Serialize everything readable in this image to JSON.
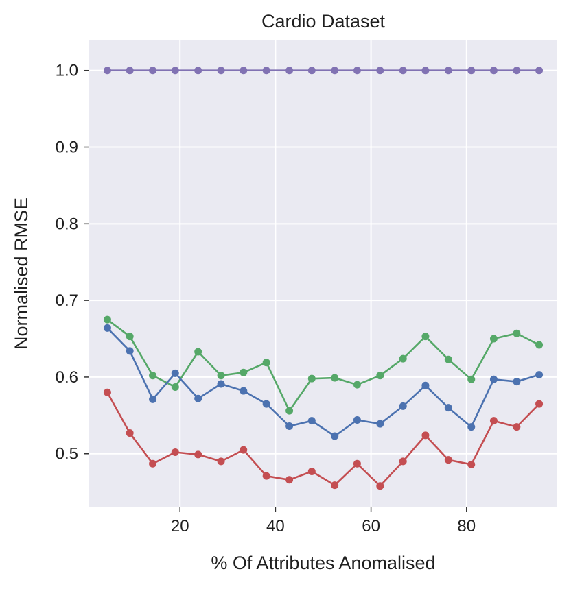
{
  "chart_data": {
    "type": "line",
    "title": "Cardio Dataset",
    "xlabel": "% Of Attributes Anomalised",
    "ylabel": "Normalised RMSE",
    "xlim": [
      1,
      99
    ],
    "ylim": [
      0.43,
      1.04
    ],
    "xticks": [
      20,
      40,
      60,
      80
    ],
    "yticks": [
      0.5,
      0.6,
      0.7,
      0.8,
      0.9,
      1.0
    ],
    "xtick_labels": [
      "20",
      "40",
      "60",
      "80"
    ],
    "ytick_labels": [
      "0.5",
      "0.6",
      "0.7",
      "0.8",
      "0.9",
      "1.0"
    ],
    "grid": true,
    "x": [
      4.8,
      9.5,
      14.3,
      19.0,
      23.8,
      28.6,
      33.3,
      38.1,
      42.9,
      47.6,
      52.4,
      57.1,
      61.9,
      66.7,
      71.4,
      76.2,
      81.0,
      85.7,
      90.5,
      95.2
    ],
    "series": [
      {
        "name": "purple",
        "color": "#8172b3",
        "values": [
          1.0,
          1.0,
          1.0,
          1.0,
          1.0,
          1.0,
          1.0,
          1.0,
          1.0,
          1.0,
          1.0,
          1.0,
          1.0,
          1.0,
          1.0,
          1.0,
          1.0,
          1.0,
          1.0,
          1.0
        ]
      },
      {
        "name": "green",
        "color": "#55a868",
        "values": [
          0.675,
          0.653,
          0.602,
          0.587,
          0.633,
          0.602,
          0.606,
          0.619,
          0.556,
          0.598,
          0.599,
          0.59,
          0.602,
          0.624,
          0.653,
          0.623,
          0.597,
          0.65,
          0.657,
          0.642
        ]
      },
      {
        "name": "blue",
        "color": "#4c72b0",
        "values": [
          0.664,
          0.634,
          0.571,
          0.605,
          0.572,
          0.591,
          0.582,
          0.565,
          0.536,
          0.543,
          0.523,
          0.544,
          0.539,
          0.562,
          0.589,
          0.56,
          0.535,
          0.597,
          0.594,
          0.603
        ]
      },
      {
        "name": "red",
        "color": "#c44e52",
        "values": [
          0.58,
          0.527,
          0.487,
          0.502,
          0.499,
          0.49,
          0.505,
          0.471,
          0.466,
          0.477,
          0.459,
          0.487,
          0.458,
          0.49,
          0.524,
          0.492,
          0.486,
          0.543,
          0.535,
          0.565
        ]
      }
    ]
  }
}
